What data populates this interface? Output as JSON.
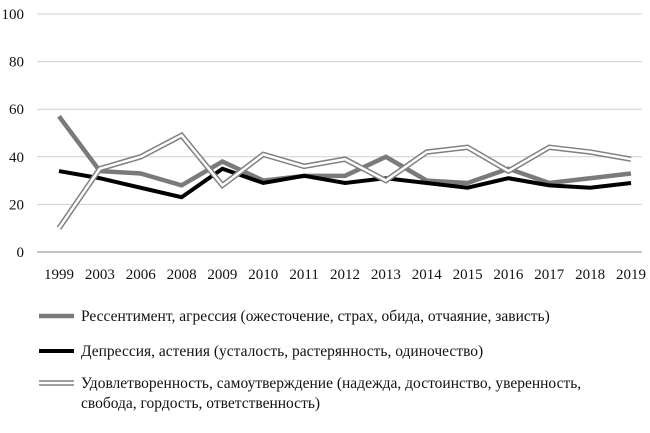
{
  "chart_data": {
    "type": "line",
    "title": "",
    "xlabel": "",
    "ylabel": "",
    "ylim": [
      0,
      100
    ],
    "yticks": [
      0,
      20,
      40,
      60,
      80,
      100
    ],
    "grid": true,
    "legend_placement": "bottom",
    "categories": [
      "1999",
      "2003",
      "2006",
      "2008",
      "2009",
      "2010",
      "2011",
      "2012",
      "2013",
      "2014",
      "2015",
      "2016",
      "2017",
      "2018",
      "2019"
    ],
    "series": [
      {
        "name": "Рессентимент, агрессия (ожесточение, страх, обида, отчаяние, зависть)",
        "style": "thick-gray",
        "color": "#7a7a7a",
        "values": [
          57,
          34,
          33,
          28,
          38,
          30,
          32,
          32,
          40,
          30,
          29,
          35,
          29,
          31,
          33
        ]
      },
      {
        "name": "Депрессия, астения (усталость, растерянность, одиночество)",
        "style": "thick-black",
        "color": "#000000",
        "values": [
          34,
          31,
          27,
          23,
          35,
          29,
          32,
          29,
          31,
          29,
          27,
          31,
          28,
          27,
          29
        ]
      },
      {
        "name": "Удовлетворенность, самоутверждение (надежда, достоинство, уверенность, свобода, гордость, ответственность)",
        "legend_lines": [
          "Удовлетворенность, самоутверждение (надежда, достоинство, уверенность,",
          "свобода, гордость, ответственность)"
        ],
        "style": "double-line",
        "color": "#808080",
        "values": [
          10,
          35,
          40,
          49,
          28,
          41,
          36,
          39,
          30,
          42,
          44,
          34,
          44,
          42,
          39
        ]
      }
    ]
  }
}
